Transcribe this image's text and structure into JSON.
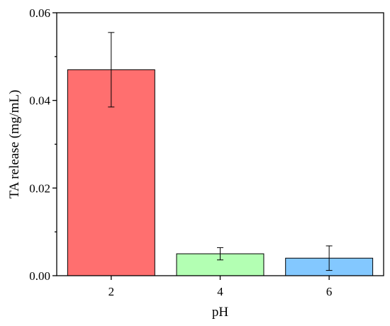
{
  "chart_data": {
    "type": "bar",
    "title": "",
    "xlabel": "pH",
    "ylabel": "TA release (mg/mL)",
    "categories": [
      "2",
      "4",
      "6"
    ],
    "series": [
      {
        "values": [
          0.047,
          0.005,
          0.004
        ],
        "errors": [
          0.0085,
          0.0014,
          0.0028
        ],
        "colors": [
          "#ff6f6f",
          "#b3ffb3",
          "#83c8ff"
        ]
      }
    ],
    "ylim": [
      0,
      0.06
    ],
    "yticks": [
      "0.00",
      "0.02",
      "0.04",
      "0.06"
    ],
    "grid": false,
    "legend": "none"
  }
}
